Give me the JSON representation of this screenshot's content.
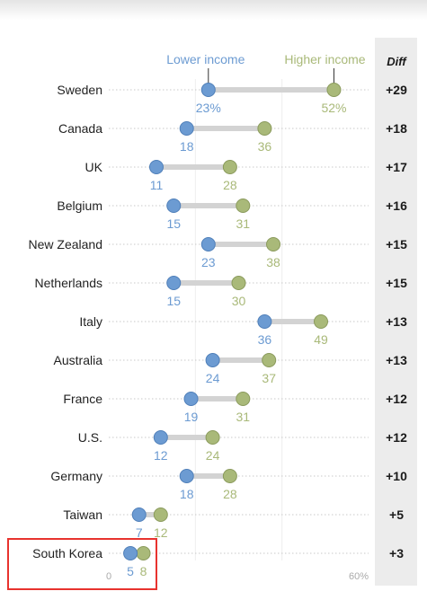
{
  "chart_data": {
    "type": "dot-range",
    "legend": [
      {
        "name": "Lower income",
        "color": "#6c9bd2"
      },
      {
        "name": "Higher income",
        "color": "#a9b979"
      }
    ],
    "diff_header": "Diff",
    "xlim": [
      0,
      60
    ],
    "x_tick_labels": [
      "0",
      "60%"
    ],
    "rows": [
      {
        "country": "Sweden",
        "lower": 23,
        "higher": 52,
        "lower_label": "23%",
        "higher_label": "52%",
        "diff": "+29"
      },
      {
        "country": "Canada",
        "lower": 18,
        "higher": 36,
        "lower_label": "18",
        "higher_label": "36",
        "diff": "+18"
      },
      {
        "country": "UK",
        "lower": 11,
        "higher": 28,
        "lower_label": "11",
        "higher_label": "28",
        "diff": "+17"
      },
      {
        "country": "Belgium",
        "lower": 15,
        "higher": 31,
        "lower_label": "15",
        "higher_label": "31",
        "diff": "+16"
      },
      {
        "country": "New Zealand",
        "lower": 23,
        "higher": 38,
        "lower_label": "23",
        "higher_label": "38",
        "diff": "+15"
      },
      {
        "country": "Netherlands",
        "lower": 15,
        "higher": 30,
        "lower_label": "15",
        "higher_label": "30",
        "diff": "+15"
      },
      {
        "country": "Italy",
        "lower": 36,
        "higher": 49,
        "lower_label": "36",
        "higher_label": "49",
        "diff": "+13"
      },
      {
        "country": "Australia",
        "lower": 24,
        "higher": 37,
        "lower_label": "24",
        "higher_label": "37",
        "diff": "+13"
      },
      {
        "country": "France",
        "lower": 19,
        "higher": 31,
        "lower_label": "19",
        "higher_label": "31",
        "diff": "+12"
      },
      {
        "country": "U.S.",
        "lower": 12,
        "higher": 24,
        "lower_label": "12",
        "higher_label": "24",
        "diff": "+12"
      },
      {
        "country": "Germany",
        "lower": 18,
        "higher": 28,
        "lower_label": "18",
        "higher_label": "28",
        "diff": "+10"
      },
      {
        "country": "Taiwan",
        "lower": 7,
        "higher": 12,
        "lower_label": "7",
        "higher_label": "12",
        "diff": "+5"
      },
      {
        "country": "South Korea",
        "lower": 5,
        "higher": 8,
        "lower_label": "5",
        "higher_label": "8",
        "diff": "+3"
      }
    ],
    "highlighted_country": "South Korea",
    "colors": {
      "lower": "#6c9bd2",
      "lower_stroke": "#4f7fb9",
      "higher": "#a9b979",
      "higher_stroke": "#8a9a5c",
      "connector": "#d3d3d3",
      "gridline": "#c9c9c9",
      "diff_panel": "#ececec",
      "highlight_box": "#e8332e"
    }
  }
}
